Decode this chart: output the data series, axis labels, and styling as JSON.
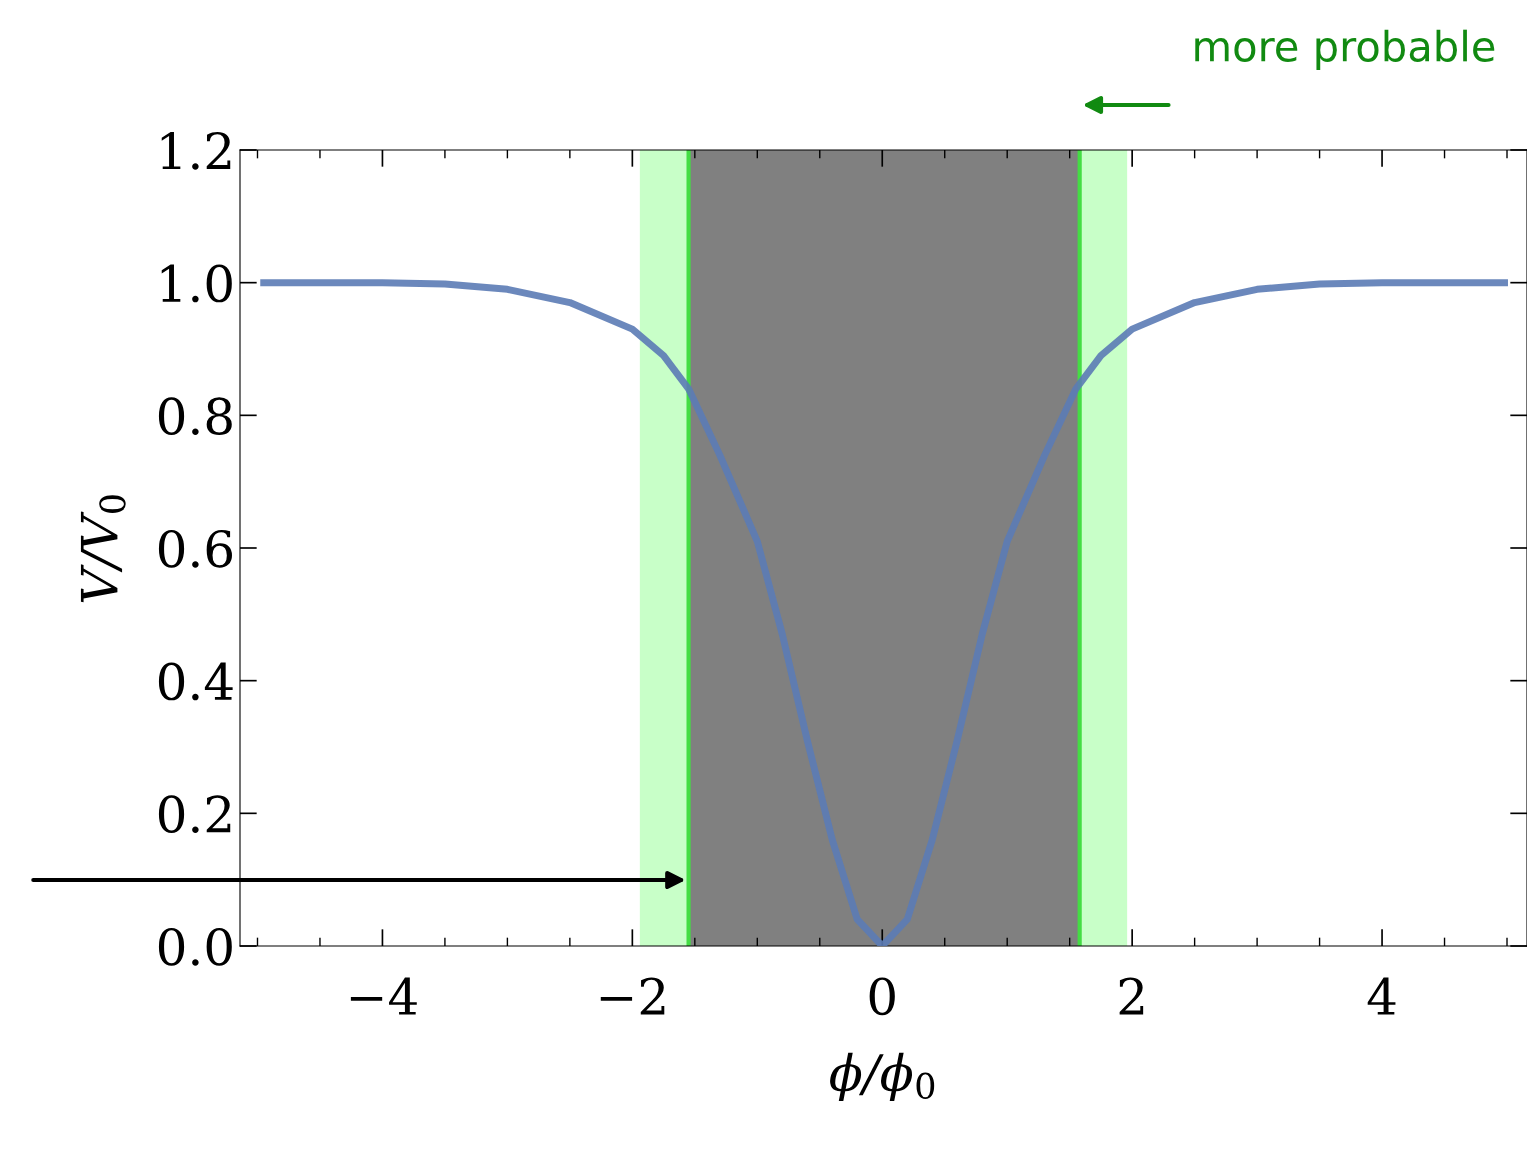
{
  "chart_data": {
    "type": "line",
    "xlabel": "ϕ/ϕ$_{0}$",
    "ylabel": "V/V$_{0}$",
    "x": [
      -4.95,
      -4.0,
      -3.5,
      -3.0,
      -2.5,
      -2.0,
      -1.75,
      -1.55,
      -1.3,
      -1.0,
      -0.8,
      -0.6,
      -0.4,
      -0.2,
      0,
      0.2,
      0.4,
      0.6,
      0.8,
      1.0,
      1.3,
      1.55,
      1.75,
      2.0,
      2.5,
      3.0,
      3.5,
      4.0,
      4.98
    ],
    "series": [
      {
        "color": "#5b7bb5",
        "values": [
          1.0,
          1.0,
          0.998,
          0.99,
          0.97,
          0.93,
          0.89,
          0.84,
          0.74,
          0.61,
          0.47,
          0.31,
          0.16,
          0.04,
          0,
          0.04,
          0.16,
          0.31,
          0.47,
          0.61,
          0.74,
          0.84,
          0.89,
          0.93,
          0.97,
          0.99,
          0.998,
          1.0,
          1.0
        ]
      }
    ],
    "bands": [
      {
        "axis": "x",
        "from": -1.55,
        "to": 1.58,
        "color": "#808080"
      },
      {
        "axis": "x",
        "from": -1.94,
        "to": -1.55,
        "color": "#c8ffc8"
      },
      {
        "axis": "x",
        "from": 1.58,
        "to": 1.96,
        "color": "#c8ffc8"
      }
    ],
    "ref_lines": [
      {
        "axis": "x",
        "value": -1.55,
        "color": "#44dd44"
      },
      {
        "axis": "x",
        "value": 1.58,
        "color": "#44dd44"
      }
    ],
    "annotations": [
      "more probable"
    ],
    "xlim": [
      -5.14,
      5.16
    ],
    "ylim": [
      0,
      1.2
    ],
    "xticks": [
      {
        "value": -4,
        "label": "−4"
      },
      {
        "value": -2,
        "label": "−2"
      },
      0,
      2,
      4
    ],
    "yticks": [
      {
        "value": 0,
        "label": "0.0"
      },
      0.2,
      0.4,
      0.6,
      0.8,
      {
        "value": 1,
        "label": "1.0"
      },
      1.2
    ],
    "grid": false,
    "legend": false,
    "line_style": "solid",
    "marker": "none"
  }
}
